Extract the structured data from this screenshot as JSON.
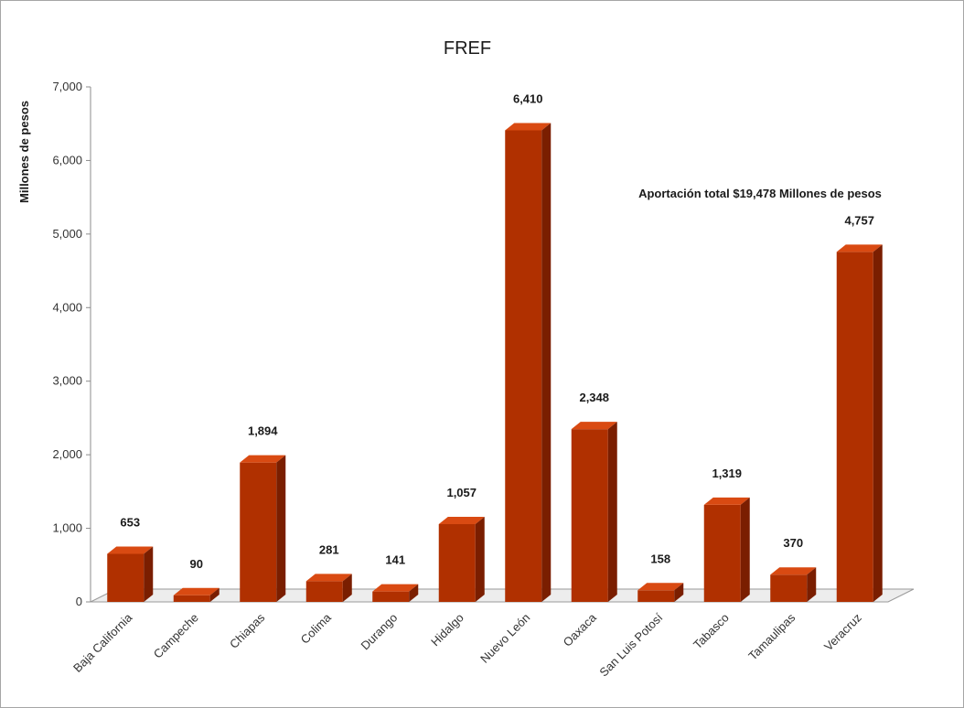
{
  "chart_data": {
    "type": "bar",
    "title": "FREF",
    "ylabel": "Millones de pesos",
    "xlabel": "",
    "ylim": [
      0,
      7000
    ],
    "yticks": [
      "0",
      "1,000",
      "2,000",
      "3,000",
      "4,000",
      "5,000",
      "6,000",
      "7,000"
    ],
    "ytick_values": [
      0,
      1000,
      2000,
      3000,
      4000,
      5000,
      6000,
      7000
    ],
    "categories": [
      "Baja California",
      "Campeche",
      "Chiapas",
      "Colima",
      "Durango",
      "Hidalgo",
      "Nuevo León",
      "Oaxaca",
      "San Luis Potosí",
      "Tabasco",
      "Tamaulipas",
      "Veracruz"
    ],
    "values": [
      653,
      90,
      1894,
      281,
      141,
      1057,
      6410,
      2348,
      158,
      1319,
      370,
      4757
    ],
    "value_labels": [
      "653",
      "90",
      "1,894",
      "281",
      "141",
      "1,057",
      "6,410",
      "2,348",
      "158",
      "1,319",
      "370",
      "4,757"
    ],
    "annotation": "Aportación total $19,478  Millones de pesos",
    "bar_color": "#b03000",
    "style": "3d-column",
    "grid": false,
    "legend": "none"
  }
}
